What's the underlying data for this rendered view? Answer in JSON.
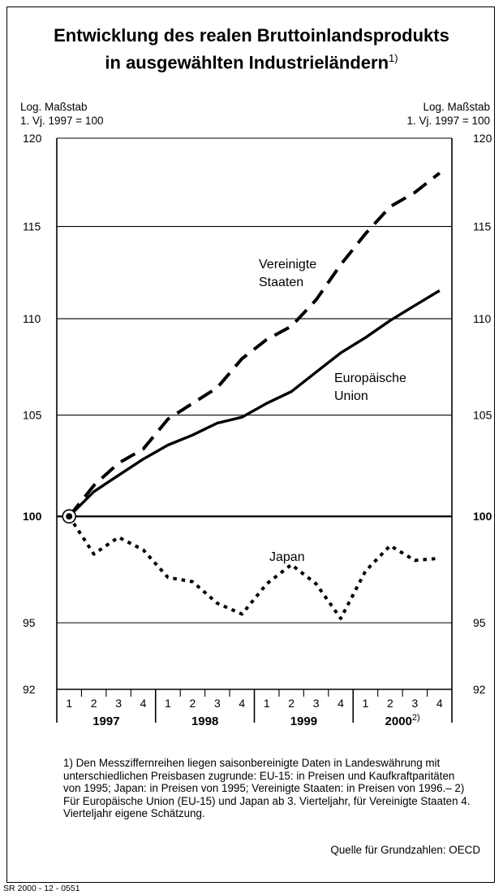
{
  "title_line1": "Entwicklung des realen Bruttoinlandsprodukts",
  "title_line2": "in ausgewählten Industrieländern",
  "title_footnote_mark": "1)",
  "scale_left_line1": "Log. Maßstab",
  "scale_left_line2": "1. Vj. 1997 = 100",
  "scale_right_line1": "Log. Maßstab",
  "scale_right_line2": "1. Vj. 1997 = 100",
  "footnote": "1) Den Messziffernreihen liegen saisonbereinigte Daten in Landeswährung mit unterschiedlichen Preisbasen zugrunde: EU-15: in Preisen und Kaufkraftparitäten von 1995; Japan: in Preisen von 1995; Vereinigte Staaten: in Preisen von 1996.– 2) Für Europäische Union (EU-15) und Japan ab 3. Vierteljahr, für Vereinigte Staaten 4. Vierteljahr eigene Schätzung.",
  "source": "Quelle für Grundzahlen: OECD",
  "code": "SR 2000 - 12 - 0551",
  "chart_data": {
    "type": "line",
    "y_scale": "log",
    "ylim": [
      92,
      120
    ],
    "y_ticks": [
      92,
      95,
      100,
      105,
      110,
      115,
      120
    ],
    "quarter_labels": [
      "1",
      "2",
      "3",
      "4",
      "1",
      "2",
      "3",
      "4",
      "1",
      "2",
      "3",
      "4",
      "1",
      "2",
      "3",
      "4"
    ],
    "years": [
      {
        "label": "1997",
        "mark": ""
      },
      {
        "label": "1998",
        "mark": ""
      },
      {
        "label": "1999",
        "mark": ""
      },
      {
        "label": "2000",
        "mark": "2)"
      }
    ],
    "series": [
      {
        "name": "Vereinigte Staaten",
        "label_lines": [
          "Vereinigte",
          "Staaten"
        ],
        "style": "dashed",
        "values": [
          100,
          101.5,
          102.6,
          103.3,
          104.8,
          105.6,
          106.4,
          107.9,
          108.9,
          109.6,
          111.0,
          112.9,
          114.6,
          116.1,
          116.9,
          118.0
        ]
      },
      {
        "name": "Europäische Union",
        "label_lines": [
          "Europäische",
          "Union"
        ],
        "style": "solid",
        "values": [
          100,
          101.2,
          102.0,
          102.8,
          103.5,
          104.0,
          104.6,
          104.9,
          105.6,
          106.2,
          107.2,
          108.2,
          109.0,
          109.9,
          110.7,
          111.5
        ]
      },
      {
        "name": "Japan",
        "label_lines": [
          "Japan"
        ],
        "style": "dotted",
        "values": [
          100,
          98.2,
          99.0,
          98.4,
          97.1,
          96.9,
          95.9,
          95.4,
          96.8,
          97.7,
          96.8,
          95.2,
          97.4,
          98.6,
          97.9,
          98.0
        ]
      }
    ]
  }
}
